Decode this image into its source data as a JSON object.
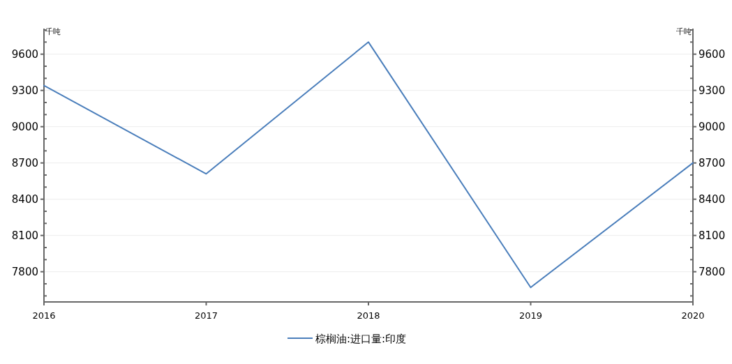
{
  "chart_data": {
    "type": "line",
    "ylabel": "千吨",
    "y2label": "千吨",
    "x": [
      2016,
      2017,
      2018,
      2019,
      2020
    ],
    "xlim": [
      2016,
      2020
    ],
    "xticks": [
      2016,
      2017,
      2018,
      2019,
      2020
    ],
    "series": [
      {
        "name": "棕榈油:进口量:印度",
        "color": "#4a7ebb",
        "values": [
          9340,
          8610,
          9700,
          7670,
          8700
        ]
      }
    ],
    "ylim": [
      7550,
      9800
    ],
    "yticks": [
      {
        "value": 7600,
        "label": null
      },
      {
        "value": 7700,
        "label": null
      },
      7800,
      {
        "value": 7900,
        "label": null
      },
      {
        "value": 8000,
        "label": null
      },
      8100,
      {
        "value": 8200,
        "label": null
      },
      {
        "value": 8300,
        "label": null
      },
      8400,
      {
        "value": 8500,
        "label": null
      },
      {
        "value": 8600,
        "label": null
      },
      8700,
      {
        "value": 8800,
        "label": null
      },
      {
        "value": 8900,
        "label": null
      },
      9000,
      {
        "value": 9100,
        "label": null
      },
      {
        "value": 9200,
        "label": null
      },
      9300,
      {
        "value": 9400,
        "label": null
      },
      {
        "value": 9500,
        "label": null
      },
      9600,
      {
        "value": 9700,
        "label": null
      },
      {
        "value": 9800,
        "label": null
      }
    ],
    "y2lim": [
      7550,
      9800
    ],
    "y2ticks": [
      {
        "value": 7600,
        "label": null
      },
      {
        "value": 7700,
        "label": null
      },
      7800,
      {
        "value": 7900,
        "label": null
      },
      {
        "value": 8000,
        "label": null
      },
      8100,
      {
        "value": 8200,
        "label": null
      },
      {
        "value": 8300,
        "label": null
      },
      8400,
      {
        "value": 8500,
        "label": null
      },
      {
        "value": 8600,
        "label": null
      },
      8700,
      {
        "value": 8800,
        "label": null
      },
      {
        "value": 8900,
        "label": null
      },
      9000,
      {
        "value": 9100,
        "label": null
      },
      {
        "value": 9200,
        "label": null
      },
      9300,
      {
        "value": 9400,
        "label": null
      },
      {
        "value": 9500,
        "label": null
      },
      9600,
      {
        "value": 9700,
        "label": null
      },
      {
        "value": 9800,
        "label": null
      }
    ],
    "grid": "y",
    "legend": "bottom",
    "marker": "none",
    "line_style": "solid"
  }
}
